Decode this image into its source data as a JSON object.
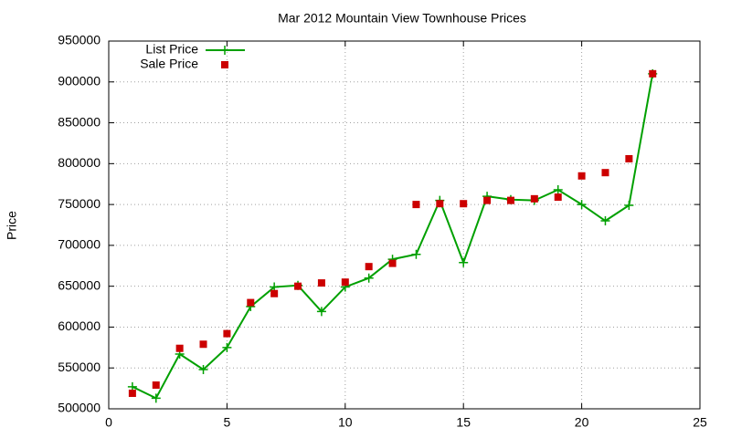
{
  "chart_data": {
    "type": "line",
    "title": "Mar 2012 Mountain View Townhouse Prices",
    "y_label": "Price",
    "x": [
      1,
      2,
      3,
      4,
      5,
      6,
      7,
      8,
      9,
      10,
      11,
      12,
      13,
      14,
      15,
      16,
      17,
      18,
      19,
      20,
      21,
      22,
      23
    ],
    "series": [
      {
        "name": "List Price",
        "color": "#00a000",
        "line": true,
        "marker": "plus",
        "values": [
          527000,
          513000,
          567000,
          548000,
          575000,
          625000,
          649000,
          651000,
          619000,
          649000,
          660000,
          683000,
          689000,
          755000,
          679000,
          760000,
          756000,
          755000,
          768000,
          750000,
          730000,
          749000,
          910000
        ]
      },
      {
        "name": "Sale Price",
        "color": "#cc0000",
        "line": false,
        "marker": "square",
        "values": [
          519000,
          529000,
          574000,
          579000,
          592000,
          630000,
          641000,
          650000,
          654000,
          655000,
          674000,
          678000,
          750000,
          751000,
          751000,
          755000,
          755000,
          757000,
          759000,
          785000,
          789000,
          806000,
          910000
        ]
      }
    ],
    "xlim": [
      0,
      25
    ],
    "xticks": [
      0,
      5,
      10,
      15,
      20,
      25
    ],
    "ylim": [
      500000,
      950000
    ],
    "yticks": [
      500000,
      550000,
      600000,
      650000,
      700000,
      750000,
      800000,
      850000,
      900000,
      950000
    ],
    "grid": true,
    "legend": "top-left"
  }
}
